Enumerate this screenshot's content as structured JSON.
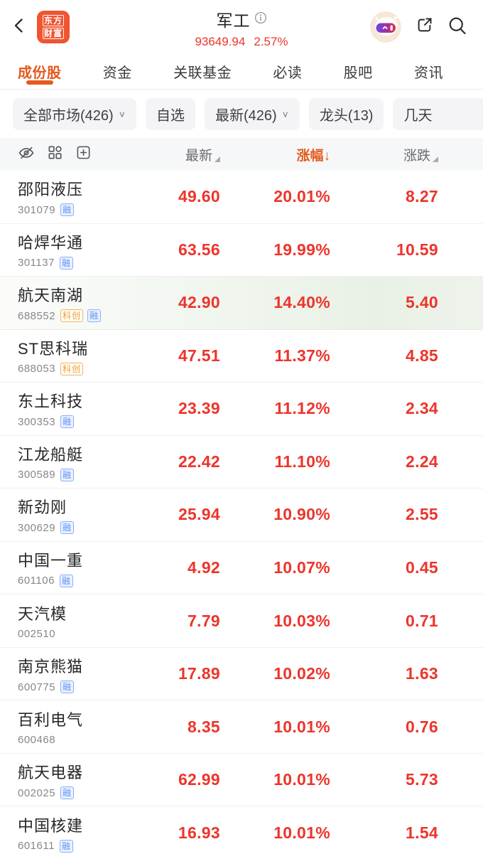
{
  "colors": {
    "accent_orange": "#e5591f",
    "brand_logo_red": "#f05430",
    "value_red": "#ed342b",
    "highlight_row_green": "#e9f1e6",
    "badge_blue": "#5f92f5",
    "badge_orange": "#ef9c2d"
  },
  "header": {
    "logo_line1": "东方",
    "logo_line2": "财富",
    "title": "军工",
    "index_value": "93649.94",
    "index_change_pct": "2.57%"
  },
  "tabs": [
    {
      "label": "成份股",
      "active": true
    },
    {
      "label": "资金",
      "active": false
    },
    {
      "label": "关联基金",
      "active": false
    },
    {
      "label": "必读",
      "active": false
    },
    {
      "label": "股吧",
      "active": false
    },
    {
      "label": "资讯",
      "active": false
    }
  ],
  "filters": [
    {
      "label": "全部市场(426)",
      "dropdown": true,
      "clipped": false
    },
    {
      "label": "自选",
      "dropdown": false,
      "clipped": false
    },
    {
      "label": "最新(426)",
      "dropdown": true,
      "clipped": false
    },
    {
      "label": "龙头(13)",
      "dropdown": false,
      "clipped": false
    },
    {
      "label": "几天",
      "dropdown": false,
      "clipped": true
    }
  ],
  "table": {
    "header": {
      "latest": "最新",
      "change_pct": "涨幅",
      "change_amt": "涨跌",
      "sort_desc_arrow": "↓"
    },
    "rows": [
      {
        "name": "邵阳液压",
        "code": "301079",
        "badges": [
          {
            "text": "融",
            "type": "rong"
          }
        ],
        "latest": "49.60",
        "change_pct": "20.01%",
        "change_amt": "8.27",
        "highlighted": false
      },
      {
        "name": "哈焊华通",
        "code": "301137",
        "badges": [
          {
            "text": "融",
            "type": "rong"
          }
        ],
        "latest": "63.56",
        "change_pct": "19.99%",
        "change_amt": "10.59",
        "highlighted": false
      },
      {
        "name": "航天南湖",
        "code": "688552",
        "badges": [
          {
            "text": "科创",
            "type": "kechuang"
          },
          {
            "text": "融",
            "type": "rong"
          }
        ],
        "latest": "42.90",
        "change_pct": "14.40%",
        "change_amt": "5.40",
        "highlighted": true
      },
      {
        "name": "ST思科瑞",
        "code": "688053",
        "badges": [
          {
            "text": "科创",
            "type": "kechuang"
          }
        ],
        "latest": "47.51",
        "change_pct": "11.37%",
        "change_amt": "4.85",
        "highlighted": false
      },
      {
        "name": "东土科技",
        "code": "300353",
        "badges": [
          {
            "text": "融",
            "type": "rong"
          }
        ],
        "latest": "23.39",
        "change_pct": "11.12%",
        "change_amt": "2.34",
        "highlighted": false
      },
      {
        "name": "江龙船艇",
        "code": "300589",
        "badges": [
          {
            "text": "融",
            "type": "rong"
          }
        ],
        "latest": "22.42",
        "change_pct": "11.10%",
        "change_amt": "2.24",
        "highlighted": false
      },
      {
        "name": "新劲刚",
        "code": "300629",
        "badges": [
          {
            "text": "融",
            "type": "rong"
          }
        ],
        "latest": "25.94",
        "change_pct": "10.90%",
        "change_amt": "2.55",
        "highlighted": false
      },
      {
        "name": "中国一重",
        "code": "601106",
        "badges": [
          {
            "text": "融",
            "type": "rong"
          }
        ],
        "latest": "4.92",
        "change_pct": "10.07%",
        "change_amt": "0.45",
        "highlighted": false
      },
      {
        "name": "天汽模",
        "code": "002510",
        "badges": [],
        "latest": "7.79",
        "change_pct": "10.03%",
        "change_amt": "0.71",
        "highlighted": false
      },
      {
        "name": "南京熊猫",
        "code": "600775",
        "badges": [
          {
            "text": "融",
            "type": "rong"
          }
        ],
        "latest": "17.89",
        "change_pct": "10.02%",
        "change_amt": "1.63",
        "highlighted": false
      },
      {
        "name": "百利电气",
        "code": "600468",
        "badges": [],
        "latest": "8.35",
        "change_pct": "10.01%",
        "change_amt": "0.76",
        "highlighted": false
      },
      {
        "name": "航天电器",
        "code": "002025",
        "badges": [
          {
            "text": "融",
            "type": "rong"
          }
        ],
        "latest": "62.99",
        "change_pct": "10.01%",
        "change_amt": "5.73",
        "highlighted": false
      },
      {
        "name": "中国核建",
        "code": "601611",
        "badges": [
          {
            "text": "融",
            "type": "rong"
          }
        ],
        "latest": "16.93",
        "change_pct": "10.01%",
        "change_amt": "1.54",
        "highlighted": false
      }
    ]
  }
}
